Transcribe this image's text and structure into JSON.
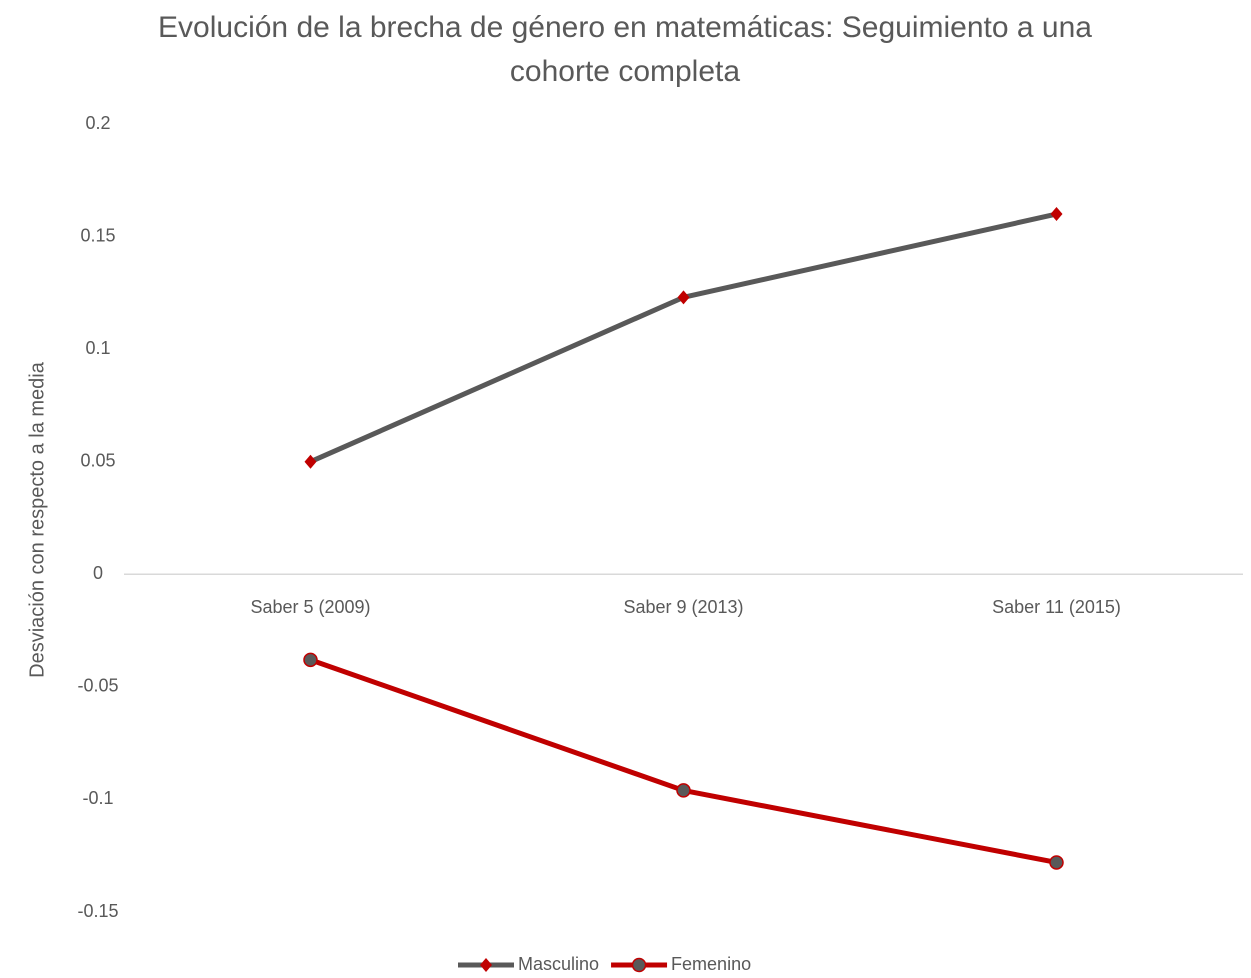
{
  "chart_data": {
    "type": "line",
    "title": "Evolución de la brecha de género en matemáticas: Seguimiento a una cohorte completa",
    "y_label": "Desviación con respecto a la media",
    "categories": [
      "Saber 5 (2009)",
      "Saber 9 (2013)",
      "Saber 11 (2015)"
    ],
    "series": [
      {
        "name": "Masculino",
        "color": "#595959",
        "marker": "diamond",
        "marker_color": "#c00000",
        "values": [
          0.05,
          0.123,
          0.16
        ]
      },
      {
        "name": "Femenino",
        "color": "#c00000",
        "marker": "circle",
        "marker_color": "#595959",
        "values": [
          -0.038,
          -0.096,
          -0.128
        ]
      }
    ],
    "ylim": [
      -0.15,
      0.2
    ],
    "yticks": [
      -0.15,
      -0.1,
      -0.05,
      0,
      0.05,
      0.1,
      0.15,
      0.2
    ],
    "grid": false,
    "legend": "bottom"
  }
}
